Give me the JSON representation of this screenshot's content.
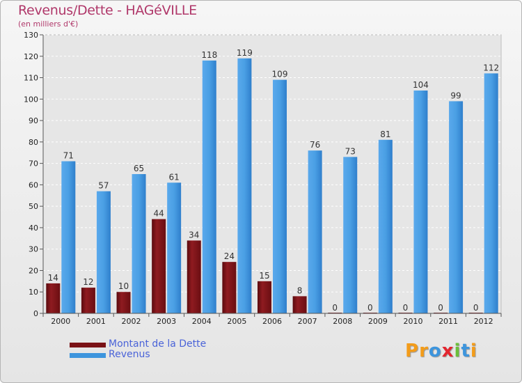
{
  "header": {
    "title": "Revenus/Dette - HAGéVILLE",
    "subtitle": "(en milliers d'€)"
  },
  "colors": {
    "debt": "#7a1216",
    "revenue": "#3d95dd",
    "title": "#b0386a",
    "legend_text": "#4a63d8"
  },
  "chart_data": {
    "type": "bar",
    "title": "Revenus/Dette - HAGéVILLE",
    "ylabel": "(en milliers d'€)",
    "xlabel": "",
    "ylim": [
      0,
      130
    ],
    "y_ticks": [
      0,
      10,
      20,
      30,
      40,
      50,
      60,
      70,
      80,
      90,
      100,
      110,
      120,
      130
    ],
    "grid": true,
    "categories": [
      "2000",
      "2001",
      "2002",
      "2003",
      "2004",
      "2005",
      "2006",
      "2007",
      "2008",
      "2009",
      "2010",
      "2011",
      "2012"
    ],
    "series": [
      {
        "name": "Montant de la Dette",
        "values": [
          14,
          12,
          10,
          44,
          34,
          24,
          15,
          8,
          0,
          0,
          0,
          0,
          0
        ]
      },
      {
        "name": "Revenus",
        "values": [
          71,
          57,
          65,
          61,
          118,
          119,
          109,
          76,
          73,
          81,
          104,
          99,
          112
        ]
      }
    ],
    "legend_position": "bottom-left"
  },
  "legend": {
    "items": [
      {
        "label": "Montant de la Dette",
        "color": "#7a1216"
      },
      {
        "label": "Revenus",
        "color": "#3d95dd"
      }
    ]
  },
  "logo": {
    "text": "Proxiti",
    "letters": [
      {
        "ch": "P",
        "color": "#f39c1a"
      },
      {
        "ch": "r",
        "color": "#f39c1a"
      },
      {
        "ch": "o",
        "color": "#3d95dd"
      },
      {
        "ch": "x",
        "color": "#e3262f"
      },
      {
        "ch": "i",
        "color": "#6bbf3a"
      },
      {
        "ch": "t",
        "color": "#3d95dd"
      },
      {
        "ch": "i",
        "color": "#f39c1a"
      }
    ]
  }
}
